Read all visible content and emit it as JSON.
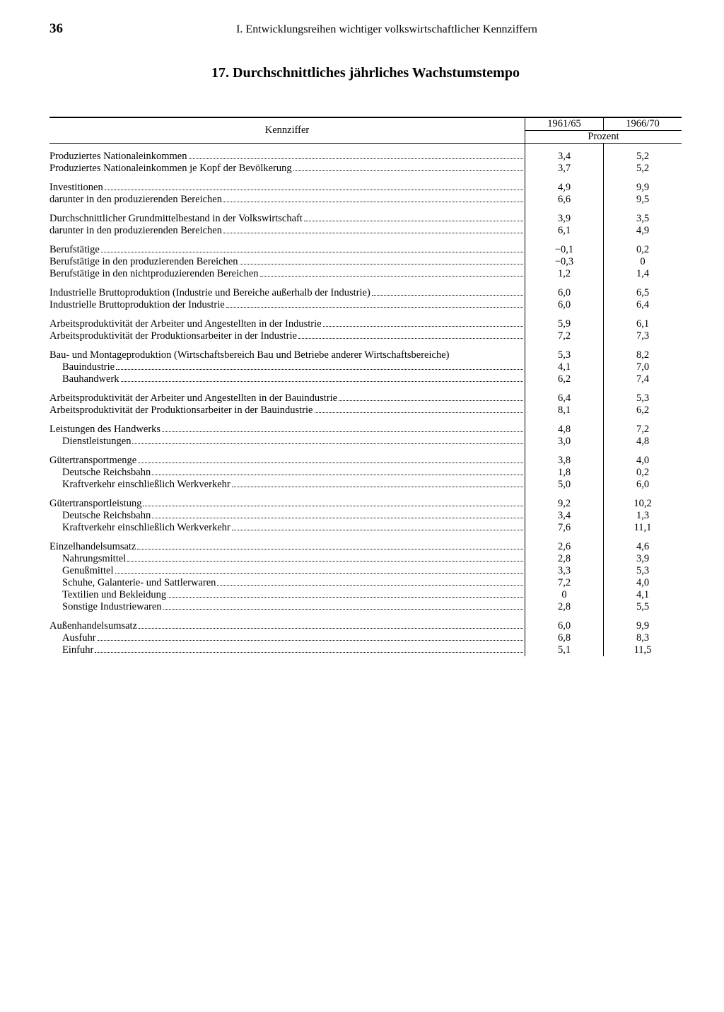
{
  "page_number": "36",
  "section_header": "I. Entwicklungsreihen wichtiger volkswirtschaftlicher Kennziffern",
  "table_title": "17. Durchschnittliches jährliches Wachstumstempo",
  "columns": {
    "kennziffer": "Kennziffer",
    "period1": "1961/65",
    "period2": "1966/70",
    "unit": "Prozent"
  },
  "rows": [
    {
      "label": "Produziertes Nationaleinkommen",
      "v1": "3,4",
      "v2": "5,2",
      "indent": 0,
      "gap_before": true
    },
    {
      "label": "Produziertes Nationaleinkommen je Kopf der Bevölkerung",
      "v1": "3,7",
      "v2": "5,2",
      "indent": 0
    },
    {
      "label": "Investitionen",
      "v1": "4,9",
      "v2": "9,9",
      "indent": 0,
      "gap_before": true
    },
    {
      "label": "darunter in den produzierenden Bereichen",
      "v1": "6,6",
      "v2": "9,5",
      "indent": 0
    },
    {
      "label": "Durchschnittlicher Grundmittelbestand in der Volkswirtschaft",
      "v1": "3,9",
      "v2": "3,5",
      "indent": 0,
      "gap_before": true
    },
    {
      "label": "darunter in den produzierenden Bereichen",
      "v1": "6,1",
      "v2": "4,9",
      "indent": 0
    },
    {
      "label": "Berufstätige",
      "v1": "−0,1",
      "v2": "0,2",
      "indent": 0,
      "gap_before": true
    },
    {
      "label": "Berufstätige in den produzierenden Bereichen",
      "v1": "−0,3",
      "v2": "0",
      "indent": 0
    },
    {
      "label": "Berufstätige in den nichtproduzierenden Bereichen",
      "v1": "1,2",
      "v2": "1,4",
      "indent": 0
    },
    {
      "label": "Industrielle Bruttoproduktion (Industrie und Bereiche außerhalb der Industrie)",
      "v1": "6,0",
      "v2": "6,5",
      "indent": 0,
      "gap_before": true
    },
    {
      "label": "Industrielle Bruttoproduktion der Industrie",
      "v1": "6,0",
      "v2": "6,4",
      "indent": 0
    },
    {
      "label": "Arbeitsproduktivität der Arbeiter und Angestellten in der Industrie",
      "v1": "5,9",
      "v2": "6,1",
      "indent": 0,
      "gap_before": true
    },
    {
      "label": "Arbeitsproduktivität der Produktionsarbeiter in der Industrie",
      "v1": "7,2",
      "v2": "7,3",
      "indent": 0
    },
    {
      "label": "Bau- und Montageproduktion (Wirtschaftsbereich Bau und Betriebe anderer Wirtschaftsbereiche)",
      "v1": "5,3",
      "v2": "8,2",
      "indent": 0,
      "gap_before": true,
      "no_dots": true
    },
    {
      "label": "Bauindustrie",
      "v1": "4,1",
      "v2": "7,0",
      "indent": 1
    },
    {
      "label": "Bauhandwerk",
      "v1": "6,2",
      "v2": "7,4",
      "indent": 1
    },
    {
      "label": "Arbeitsproduktivität der Arbeiter und Angestellten in der Bauindustrie",
      "v1": "6,4",
      "v2": "5,3",
      "indent": 0,
      "gap_before": true
    },
    {
      "label": "Arbeitsproduktivität der Produktionsarbeiter in der Bauindustrie",
      "v1": "8,1",
      "v2": "6,2",
      "indent": 0
    },
    {
      "label": "Leistungen des Handwerks",
      "v1": "4,8",
      "v2": "7,2",
      "indent": 0,
      "gap_before": true
    },
    {
      "label": "Dienstleistungen",
      "v1": "3,0",
      "v2": "4,8",
      "indent": 1
    },
    {
      "label": "Gütertransportmenge",
      "v1": "3,8",
      "v2": "4,0",
      "indent": 0,
      "gap_before": true
    },
    {
      "label": "Deutsche Reichsbahn",
      "v1": "1,8",
      "v2": "0,2",
      "indent": 1
    },
    {
      "label": "Kraftverkehr einschließlich Werkverkehr",
      "v1": "5,0",
      "v2": "6,0",
      "indent": 1
    },
    {
      "label": "Gütertransportleistung",
      "v1": "9,2",
      "v2": "10,2",
      "indent": 0,
      "gap_before": true
    },
    {
      "label": "Deutsche Reichsbahn",
      "v1": "3,4",
      "v2": "1,3",
      "indent": 1
    },
    {
      "label": "Kraftverkehr einschließlich Werkverkehr",
      "v1": "7,6",
      "v2": "11,1",
      "indent": 1
    },
    {
      "label": "Einzelhandelsumsatz",
      "v1": "2,6",
      "v2": "4,6",
      "indent": 0,
      "gap_before": true
    },
    {
      "label": "Nahrungsmittel",
      "v1": "2,8",
      "v2": "3,9",
      "indent": 1
    },
    {
      "label": "Genußmittel",
      "v1": "3,3",
      "v2": "5,3",
      "indent": 1
    },
    {
      "label": "Schuhe, Galanterie- und Sattlerwaren",
      "v1": "7,2",
      "v2": "4,0",
      "indent": 1
    },
    {
      "label": "Textilien und Bekleidung",
      "v1": "0",
      "v2": "4,1",
      "indent": 1
    },
    {
      "label": "Sonstige Industriewaren",
      "v1": "2,8",
      "v2": "5,5",
      "indent": 1
    },
    {
      "label": "Außenhandelsumsatz",
      "v1": "6,0",
      "v2": "9,9",
      "indent": 0,
      "gap_before": true
    },
    {
      "label": "Ausfuhr",
      "v1": "6,8",
      "v2": "8,3",
      "indent": 1
    },
    {
      "label": "Einfuhr",
      "v1": "5,1",
      "v2": "11,5",
      "indent": 1
    }
  ]
}
